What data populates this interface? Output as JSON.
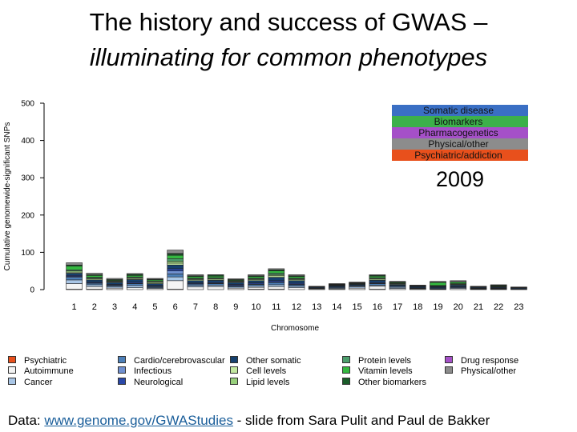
{
  "title": {
    "line1": "The history and success of GWAS –",
    "line2": "illuminating for common phenotypes"
  },
  "chart_data": {
    "type": "bar",
    "stacked": true,
    "xlabel": "Chromosome",
    "ylabel": "Cumulative genomewide-significant SNPs",
    "ylim": [
      0,
      500
    ],
    "yticks": [
      0,
      100,
      200,
      300,
      400,
      500
    ],
    "categories": [
      "1",
      "2",
      "3",
      "4",
      "5",
      "6",
      "7",
      "8",
      "9",
      "10",
      "11",
      "12",
      "13",
      "14",
      "15",
      "16",
      "17",
      "18",
      "19",
      "20",
      "21",
      "22",
      "23"
    ],
    "year": "2009",
    "series": [
      {
        "name": "Psychiatric",
        "color": "#e8501c",
        "values": [
          1,
          1,
          0,
          0,
          0,
          1,
          0,
          0,
          0,
          1,
          1,
          0,
          0,
          0,
          0,
          1,
          0,
          0,
          0,
          0,
          0,
          0,
          0
        ]
      },
      {
        "name": "Autoimmune",
        "color": "#f4f4f4",
        "values": [
          15,
          7,
          4,
          5,
          3,
          23,
          7,
          8,
          4,
          5,
          7,
          5,
          2,
          2,
          4,
          8,
          3,
          2,
          1,
          3,
          1,
          1,
          1
        ]
      },
      {
        "name": "Cancer",
        "color": "#a9c6e6",
        "values": [
          10,
          5,
          4,
          6,
          2,
          10,
          4,
          4,
          3,
          4,
          5,
          4,
          1,
          2,
          4,
          3,
          3,
          1,
          1,
          2,
          1,
          1,
          1
        ]
      },
      {
        "name": "Cardio/cerebrovascular",
        "color": "#4c7fb8",
        "values": [
          7,
          4,
          3,
          5,
          3,
          8,
          4,
          4,
          3,
          4,
          6,
          4,
          1,
          2,
          2,
          4,
          3,
          1,
          2,
          2,
          1,
          1,
          1
        ]
      },
      {
        "name": "Infectious",
        "color": "#7090d0",
        "values": [
          2,
          1,
          1,
          1,
          1,
          8,
          1,
          1,
          1,
          1,
          1,
          1,
          0,
          0,
          0,
          1,
          1,
          0,
          0,
          0,
          0,
          0,
          0
        ]
      },
      {
        "name": "Neurological",
        "color": "#2a48a8",
        "values": [
          3,
          2,
          2,
          3,
          2,
          6,
          2,
          2,
          3,
          3,
          4,
          3,
          0,
          1,
          1,
          2,
          1,
          1,
          1,
          1,
          1,
          1,
          0
        ]
      },
      {
        "name": "Other somatic",
        "color": "#16406e",
        "values": [
          6,
          6,
          5,
          7,
          5,
          10,
          6,
          6,
          5,
          6,
          9,
          7,
          2,
          3,
          3,
          6,
          3,
          3,
          3,
          4,
          2,
          2,
          2
        ]
      },
      {
        "name": "Cell levels",
        "color": "#c2e8a0",
        "values": [
          3,
          3,
          2,
          3,
          3,
          5,
          3,
          3,
          2,
          3,
          4,
          3,
          0,
          1,
          1,
          3,
          2,
          1,
          1,
          2,
          0,
          1,
          0
        ]
      },
      {
        "name": "Lipid levels",
        "color": "#98d07c",
        "values": [
          3,
          2,
          1,
          2,
          2,
          5,
          2,
          2,
          1,
          2,
          3,
          2,
          0,
          1,
          1,
          2,
          1,
          0,
          1,
          1,
          0,
          1,
          0
        ]
      },
      {
        "name": "Protein levels",
        "color": "#4c9e6c",
        "values": [
          3,
          2,
          1,
          2,
          2,
          7,
          2,
          2,
          1,
          2,
          4,
          2,
          0,
          1,
          1,
          2,
          1,
          0,
          1,
          1,
          0,
          1,
          0
        ]
      },
      {
        "name": "Vitamin levels",
        "color": "#34b840",
        "values": [
          10,
          5,
          2,
          4,
          3,
          9,
          4,
          4,
          2,
          4,
          6,
          4,
          1,
          1,
          1,
          4,
          2,
          1,
          8,
          4,
          1,
          2,
          1
        ]
      },
      {
        "name": "Other biomarkers",
        "color": "#1a5c2a",
        "values": [
          3,
          2,
          2,
          3,
          2,
          4,
          2,
          3,
          2,
          2,
          3,
          2,
          1,
          1,
          1,
          2,
          1,
          1,
          1,
          1,
          1,
          1,
          1
        ]
      },
      {
        "name": "Drug response",
        "color": "#a550c8",
        "values": [
          0,
          0,
          0,
          0,
          0,
          1,
          0,
          0,
          0,
          0,
          0,
          0,
          0,
          0,
          0,
          0,
          0,
          0,
          0,
          0,
          0,
          0,
          0
        ]
      },
      {
        "name": "Physical/other",
        "color": "#8c8c8c",
        "values": [
          6,
          4,
          3,
          2,
          2,
          9,
          3,
          1,
          2,
          3,
          3,
          3,
          1,
          1,
          1,
          2,
          1,
          1,
          2,
          3,
          1,
          1,
          0
        ]
      }
    ],
    "category_key": [
      {
        "label": "Somatic disease",
        "color": "#3a6fc4"
      },
      {
        "label": "Biomarkers",
        "color": "#3cb04a"
      },
      {
        "label": "Pharmacogenetics",
        "color": "#a550c8"
      },
      {
        "label": "Physical/other",
        "color": "#8c8c8c"
      },
      {
        "label": "Psychiatric/addiction",
        "color": "#e8501c"
      }
    ]
  },
  "legend": {
    "columns": [
      [
        "Psychiatric",
        "Autoimmune",
        "Cancer"
      ],
      [
        "Cardio/cerebrovascular",
        "Infectious",
        "Neurological"
      ],
      [
        "Other somatic",
        "Cell levels",
        "Lipid levels"
      ],
      [
        "Protein levels",
        "Vitamin levels",
        "Other biomarkers"
      ],
      [
        "Drug response",
        "Physical/other"
      ]
    ]
  },
  "footer": {
    "prefix": "Data: ",
    "link": "www.genome.gov/GWAStudies",
    "suffix": " - slide from Sara Pulit and Paul de Bakker"
  }
}
